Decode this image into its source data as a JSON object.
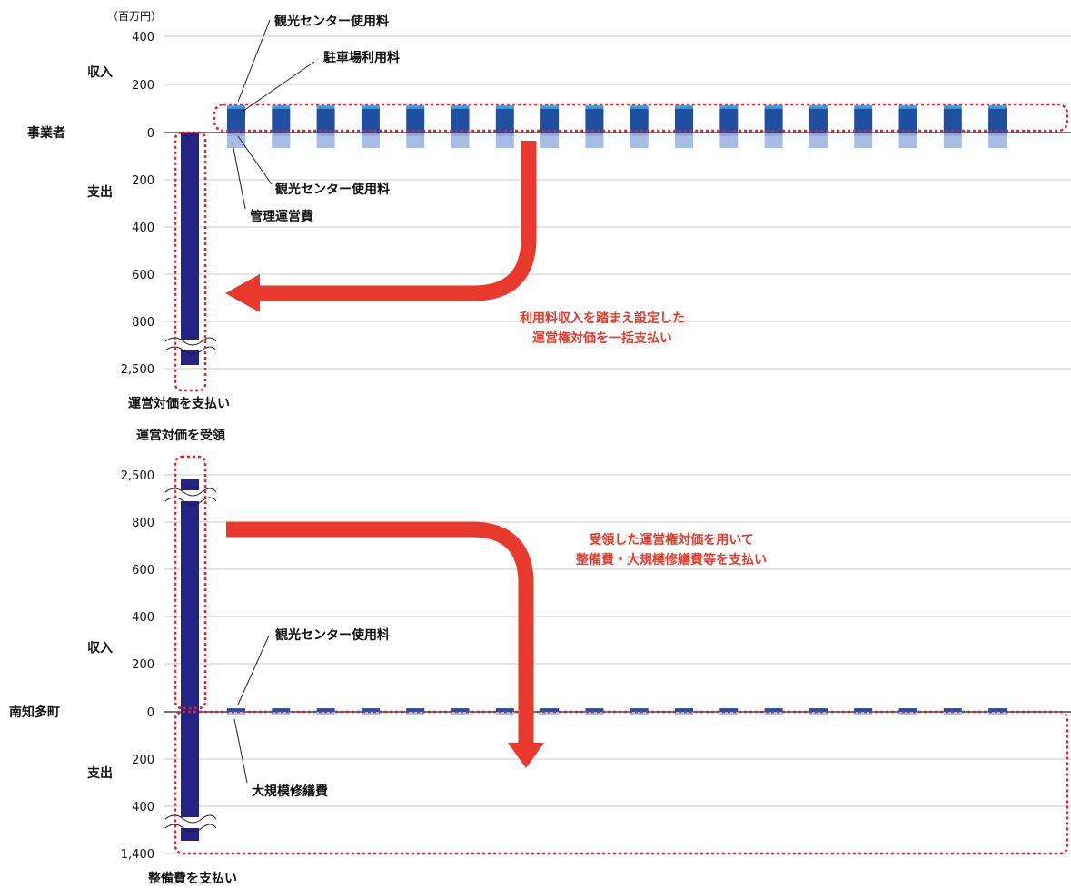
{
  "chart_data": [
    {
      "type": "bar",
      "panel": "事業者",
      "unit": "（百万円）",
      "y_ticks_top": [
        "400",
        "200",
        "0"
      ],
      "y_ticks_bottom": [
        "200",
        "400",
        "600",
        "800",
        "2,500"
      ],
      "row_labels": {
        "income": "収入",
        "entity": "事業者",
        "expense": "支出"
      },
      "axis_break": true,
      "periods": 19,
      "series": [
        {
          "name": "観光センター使用料",
          "kind": "income",
          "color": "#2aa8e8",
          "values": [
            0,
            15,
            15,
            15,
            15,
            15,
            15,
            15,
            15,
            15,
            15,
            15,
            15,
            15,
            15,
            15,
            15,
            15,
            15
          ]
        },
        {
          "name": "駐車場利用料",
          "kind": "income",
          "color": "#1f4fa0",
          "values": [
            0,
            100,
            100,
            100,
            100,
            100,
            100,
            100,
            100,
            100,
            100,
            100,
            100,
            100,
            100,
            100,
            100,
            100,
            100
          ]
        },
        {
          "name": "観光センター使用料",
          "kind": "expense",
          "color": "#a8bde6",
          "values": [
            0,
            15,
            15,
            15,
            15,
            15,
            15,
            15,
            15,
            15,
            15,
            15,
            15,
            15,
            15,
            15,
            15,
            15,
            15
          ]
        },
        {
          "name": "管理運営費",
          "kind": "expense",
          "color": "#a8bde6",
          "values": [
            0,
            50,
            50,
            50,
            50,
            50,
            50,
            50,
            50,
            50,
            50,
            50,
            50,
            50,
            50,
            50,
            50,
            50,
            50
          ]
        },
        {
          "name": "運営対価",
          "kind": "expense",
          "color": "#232383",
          "values": [
            2500,
            0,
            0,
            0,
            0,
            0,
            0,
            0,
            0,
            0,
            0,
            0,
            0,
            0,
            0,
            0,
            0,
            0,
            0
          ]
        }
      ],
      "annotations": {
        "income1": "観光センター使用料",
        "income2": "駐車場利用料",
        "expense1": "観光センター使用料",
        "expense2": "管理運営費",
        "payment": "運営対価を支払い",
        "arrow_note_line1": "利用料収入を踏まえ設定した",
        "arrow_note_line2": "運営権対価を一括支払い"
      }
    },
    {
      "type": "bar",
      "panel": "南知多町",
      "y_ticks_top": [
        "2,500",
        "800",
        "600",
        "400",
        "200",
        "0"
      ],
      "y_ticks_bottom": [
        "200",
        "400",
        "1,400"
      ],
      "row_labels": {
        "income": "収入",
        "entity": "南知多町",
        "expense": "支出"
      },
      "axis_break": true,
      "periods": 19,
      "series": [
        {
          "name": "運営対価",
          "kind": "income",
          "color": "#232383",
          "values": [
            2500,
            0,
            0,
            0,
            0,
            0,
            0,
            0,
            0,
            0,
            0,
            0,
            0,
            0,
            0,
            0,
            0,
            0,
            0
          ]
        },
        {
          "name": "観光センター使用料",
          "kind": "income",
          "color": "#1f4fa0",
          "values": [
            0,
            15,
            15,
            15,
            15,
            15,
            15,
            15,
            15,
            15,
            15,
            15,
            15,
            15,
            15,
            15,
            15,
            15,
            15
          ]
        },
        {
          "name": "大規模修繕費",
          "kind": "expense",
          "color": "#a8bde6",
          "values": [
            0,
            15,
            15,
            15,
            15,
            15,
            15,
            15,
            15,
            15,
            15,
            15,
            15,
            15,
            15,
            15,
            15,
            15,
            15
          ]
        },
        {
          "name": "整備費",
          "kind": "expense",
          "color": "#232383",
          "values": [
            1400,
            0,
            0,
            0,
            0,
            0,
            0,
            0,
            0,
            0,
            0,
            0,
            0,
            0,
            0,
            0,
            0,
            0,
            0
          ]
        }
      ],
      "annotations": {
        "receipt": "運営対価を受領",
        "income1": "観光センター使用料",
        "expense1": "大規模修繕費",
        "payment": "整備費を支払い",
        "arrow_note_line1": "受領した運営権対価を用いて",
        "arrow_note_line2": "整備費・大規模修繕費等を支払い"
      }
    }
  ],
  "colors": {
    "arrow": "#e8392c",
    "dotted": "#e0202c"
  }
}
